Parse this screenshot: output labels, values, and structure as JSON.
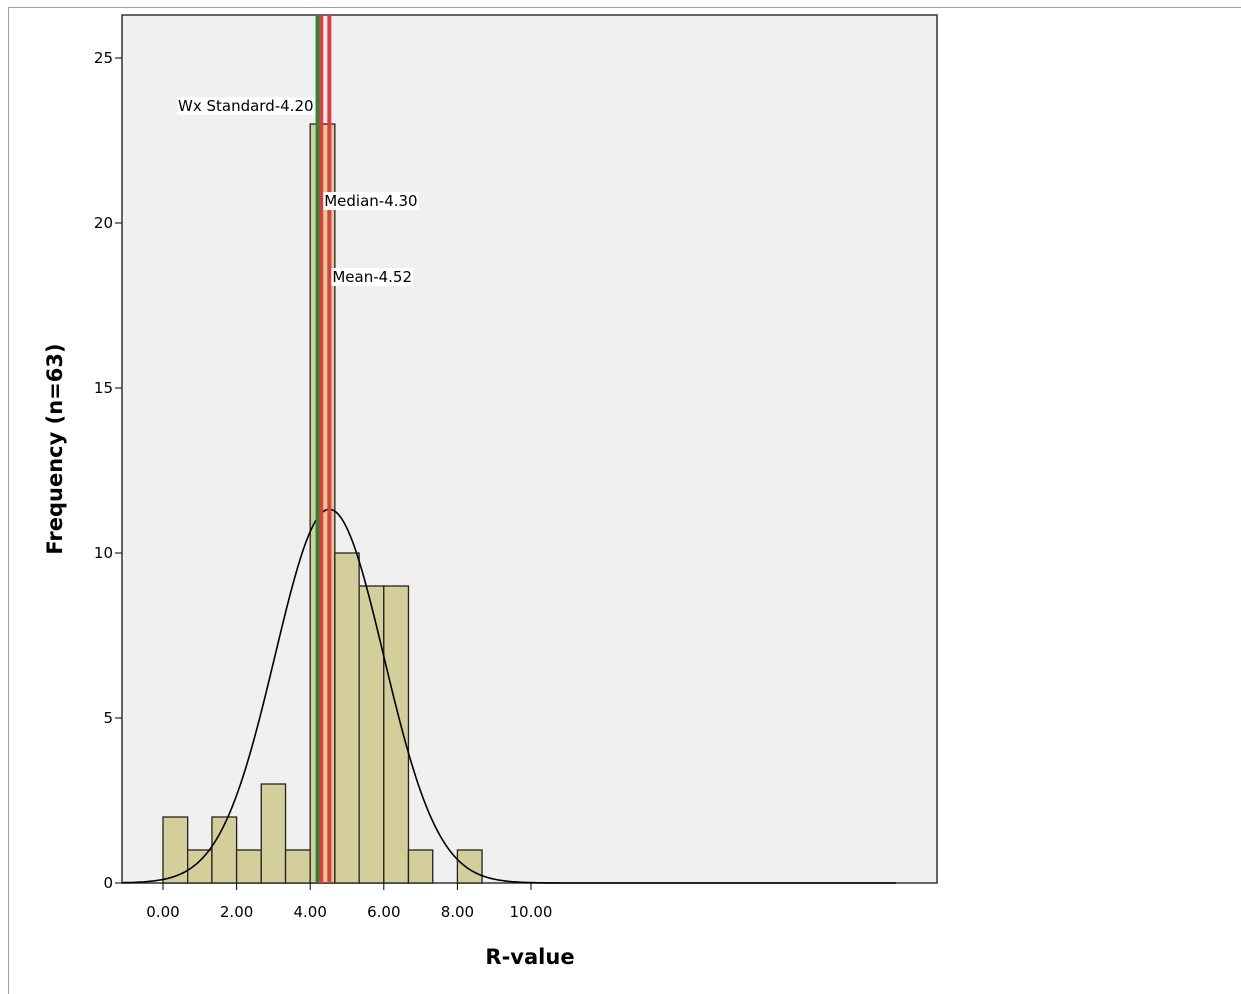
{
  "chart_data": {
    "type": "bar",
    "subtype": "histogram",
    "xlabel": "R-value",
    "ylabel": "Frequency (n=63)",
    "xlim": [
      -0.6,
      10.6
    ],
    "ylim": [
      0,
      26.3
    ],
    "x_ticks": [
      0,
      2,
      4,
      6,
      8,
      10
    ],
    "x_tick_labels": [
      "0.00",
      "2.00",
      "4.00",
      "6.00",
      "8.00",
      "10.00"
    ],
    "y_ticks": [
      0,
      5,
      10,
      15,
      20,
      25
    ],
    "y_tick_labels": [
      "0",
      "5",
      "10",
      "15",
      "20",
      "25"
    ],
    "bins": [
      {
        "from": 0.0,
        "to": 0.67,
        "count": 2
      },
      {
        "from": 0.67,
        "to": 1.33,
        "count": 1
      },
      {
        "from": 1.33,
        "to": 2.0,
        "count": 2
      },
      {
        "from": 2.0,
        "to": 2.67,
        "count": 1
      },
      {
        "from": 2.67,
        "to": 3.33,
        "count": 3
      },
      {
        "from": 3.33,
        "to": 4.0,
        "count": 1
      },
      {
        "from": 4.0,
        "to": 4.67,
        "count": 23
      },
      {
        "from": 4.67,
        "to": 5.33,
        "count": 10
      },
      {
        "from": 5.33,
        "to": 6.0,
        "count": 9
      },
      {
        "from": 6.0,
        "to": 6.67,
        "count": 9
      },
      {
        "from": 6.67,
        "to": 7.33,
        "count": 1
      },
      {
        "from": 7.33,
        "to": 8.0,
        "count": 0
      },
      {
        "from": 8.0,
        "to": 8.67,
        "count": 1
      }
    ],
    "normal_curve": {
      "mean": 4.52,
      "sd": 1.48,
      "n": 63,
      "bin_width": 0.667
    },
    "reference_lines": [
      {
        "label": "Wx Standard-4.20",
        "x": 4.2,
        "color": "#1f8a3c"
      },
      {
        "label": "Median-4.30",
        "x": 4.3,
        "color": "#e8393a"
      },
      {
        "label": "Mean-4.52",
        "x": 4.52,
        "color": "#e8393a"
      }
    ],
    "grid": false,
    "colors": {
      "bar_fill": "#d4cf9a",
      "bar_stroke": "#222222",
      "plot_background": "#f0f0f0",
      "curve": "#000000"
    }
  }
}
